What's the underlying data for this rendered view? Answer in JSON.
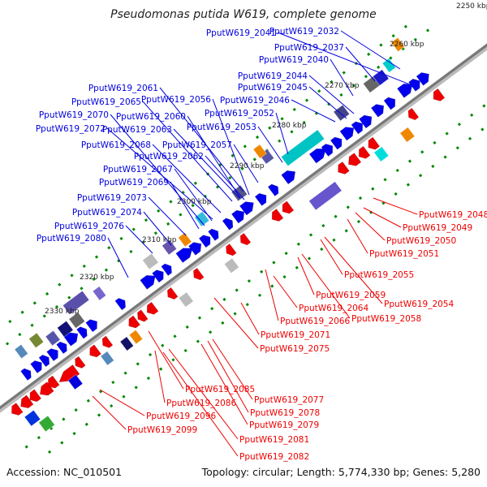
{
  "title": "Pseudomonas putida W619, complete genome",
  "footer": {
    "accession": "Accession: NC_010501",
    "summary": "Topology: circular; Length: 5,774,330 bp; Genes: 5,280"
  },
  "colors": {
    "forward_label": "#0000dd",
    "reverse_label": "#ee0000",
    "backbone": "#888888",
    "tick": "#008800",
    "forward_gene": "#0000ee",
    "reverse_gene": "#ee0000"
  },
  "scale_labels": [
    "2250 kbp",
    "2260 kbp",
    "2270 kbp",
    "2280 kbp",
    "2290 kbp",
    "2300 kbp",
    "2310 kbp",
    "2320 kbp",
    "2330 kbp"
  ],
  "forward_strand_labels": [
    "PputW619_2032",
    "PputW619_2037",
    "PputW619_2040",
    "PputW619_2041",
    "PputW619_2044",
    "PputW619_2045",
    "PputW619_2046",
    "PputW619_2052",
    "PputW619_2053",
    "PputW619_2056",
    "PputW619_2057",
    "PputW619_2060",
    "PputW619_2061",
    "PputW619_2062",
    "PputW619_2063",
    "PputW619_2065",
    "PputW619_2067",
    "PputW619_2068",
    "PputW619_2069",
    "PputW619_2070",
    "PputW619_2072",
    "PputW619_2073",
    "PputW619_2074",
    "PputW619_2076",
    "PputW619_2080"
  ],
  "reverse_strand_labels": [
    "PputW619_2048",
    "PputW619_2049",
    "PputW619_2050",
    "PputW619_2051",
    "PputW619_2054",
    "PputW619_2055",
    "PputW619_2058",
    "PputW619_2059",
    "PputW619_2064",
    "PputW619_2066",
    "PputW619_2071",
    "PputW619_2075",
    "PputW619_2077",
    "PputW619_2078",
    "PputW619_2079",
    "PputW619_2081",
    "PputW619_2082",
    "PputW619_2085",
    "PputW619_2086",
    "PputW619_2096",
    "PputW619_2099"
  ]
}
